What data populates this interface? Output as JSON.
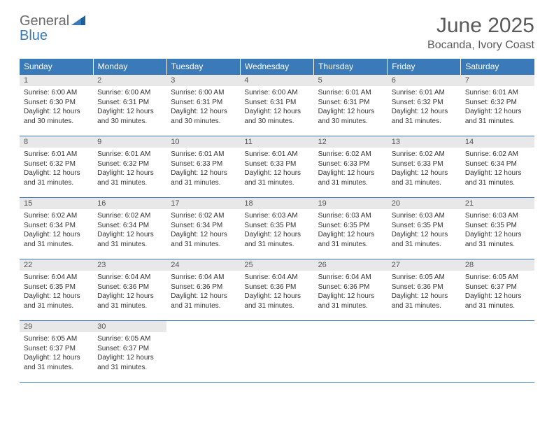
{
  "logo": {
    "text1": "General",
    "text2": "Blue"
  },
  "title": "June 2025",
  "location": "Bocanda, Ivory Coast",
  "colors": {
    "header_bg": "#3a7ab8",
    "header_text": "#ffffff",
    "daynum_bg": "#e8e8e8",
    "daynum_text": "#555555",
    "body_text": "#333333",
    "border": "#3a7ab8",
    "logo_gray": "#6b6b6b",
    "logo_blue": "#3a7ab8",
    "title_color": "#5a5a5a"
  },
  "weekdays": [
    "Sunday",
    "Monday",
    "Tuesday",
    "Wednesday",
    "Thursday",
    "Friday",
    "Saturday"
  ],
  "days": [
    {
      "n": "1",
      "sr": "6:00 AM",
      "ss": "6:30 PM",
      "dl": "12 hours and 30 minutes."
    },
    {
      "n": "2",
      "sr": "6:00 AM",
      "ss": "6:31 PM",
      "dl": "12 hours and 30 minutes."
    },
    {
      "n": "3",
      "sr": "6:00 AM",
      "ss": "6:31 PM",
      "dl": "12 hours and 30 minutes."
    },
    {
      "n": "4",
      "sr": "6:00 AM",
      "ss": "6:31 PM",
      "dl": "12 hours and 30 minutes."
    },
    {
      "n": "5",
      "sr": "6:01 AM",
      "ss": "6:31 PM",
      "dl": "12 hours and 30 minutes."
    },
    {
      "n": "6",
      "sr": "6:01 AM",
      "ss": "6:32 PM",
      "dl": "12 hours and 31 minutes."
    },
    {
      "n": "7",
      "sr": "6:01 AM",
      "ss": "6:32 PM",
      "dl": "12 hours and 31 minutes."
    },
    {
      "n": "8",
      "sr": "6:01 AM",
      "ss": "6:32 PM",
      "dl": "12 hours and 31 minutes."
    },
    {
      "n": "9",
      "sr": "6:01 AM",
      "ss": "6:32 PM",
      "dl": "12 hours and 31 minutes."
    },
    {
      "n": "10",
      "sr": "6:01 AM",
      "ss": "6:33 PM",
      "dl": "12 hours and 31 minutes."
    },
    {
      "n": "11",
      "sr": "6:01 AM",
      "ss": "6:33 PM",
      "dl": "12 hours and 31 minutes."
    },
    {
      "n": "12",
      "sr": "6:02 AM",
      "ss": "6:33 PM",
      "dl": "12 hours and 31 minutes."
    },
    {
      "n": "13",
      "sr": "6:02 AM",
      "ss": "6:33 PM",
      "dl": "12 hours and 31 minutes."
    },
    {
      "n": "14",
      "sr": "6:02 AM",
      "ss": "6:34 PM",
      "dl": "12 hours and 31 minutes."
    },
    {
      "n": "15",
      "sr": "6:02 AM",
      "ss": "6:34 PM",
      "dl": "12 hours and 31 minutes."
    },
    {
      "n": "16",
      "sr": "6:02 AM",
      "ss": "6:34 PM",
      "dl": "12 hours and 31 minutes."
    },
    {
      "n": "17",
      "sr": "6:02 AM",
      "ss": "6:34 PM",
      "dl": "12 hours and 31 minutes."
    },
    {
      "n": "18",
      "sr": "6:03 AM",
      "ss": "6:35 PM",
      "dl": "12 hours and 31 minutes."
    },
    {
      "n": "19",
      "sr": "6:03 AM",
      "ss": "6:35 PM",
      "dl": "12 hours and 31 minutes."
    },
    {
      "n": "20",
      "sr": "6:03 AM",
      "ss": "6:35 PM",
      "dl": "12 hours and 31 minutes."
    },
    {
      "n": "21",
      "sr": "6:03 AM",
      "ss": "6:35 PM",
      "dl": "12 hours and 31 minutes."
    },
    {
      "n": "22",
      "sr": "6:04 AM",
      "ss": "6:35 PM",
      "dl": "12 hours and 31 minutes."
    },
    {
      "n": "23",
      "sr": "6:04 AM",
      "ss": "6:36 PM",
      "dl": "12 hours and 31 minutes."
    },
    {
      "n": "24",
      "sr": "6:04 AM",
      "ss": "6:36 PM",
      "dl": "12 hours and 31 minutes."
    },
    {
      "n": "25",
      "sr": "6:04 AM",
      "ss": "6:36 PM",
      "dl": "12 hours and 31 minutes."
    },
    {
      "n": "26",
      "sr": "6:04 AM",
      "ss": "6:36 PM",
      "dl": "12 hours and 31 minutes."
    },
    {
      "n": "27",
      "sr": "6:05 AM",
      "ss": "6:36 PM",
      "dl": "12 hours and 31 minutes."
    },
    {
      "n": "28",
      "sr": "6:05 AM",
      "ss": "6:37 PM",
      "dl": "12 hours and 31 minutes."
    },
    {
      "n": "29",
      "sr": "6:05 AM",
      "ss": "6:37 PM",
      "dl": "12 hours and 31 minutes."
    },
    {
      "n": "30",
      "sr": "6:05 AM",
      "ss": "6:37 PM",
      "dl": "12 hours and 31 minutes."
    }
  ],
  "labels": {
    "sunrise": "Sunrise: ",
    "sunset": "Sunset: ",
    "daylight": "Daylight: "
  }
}
